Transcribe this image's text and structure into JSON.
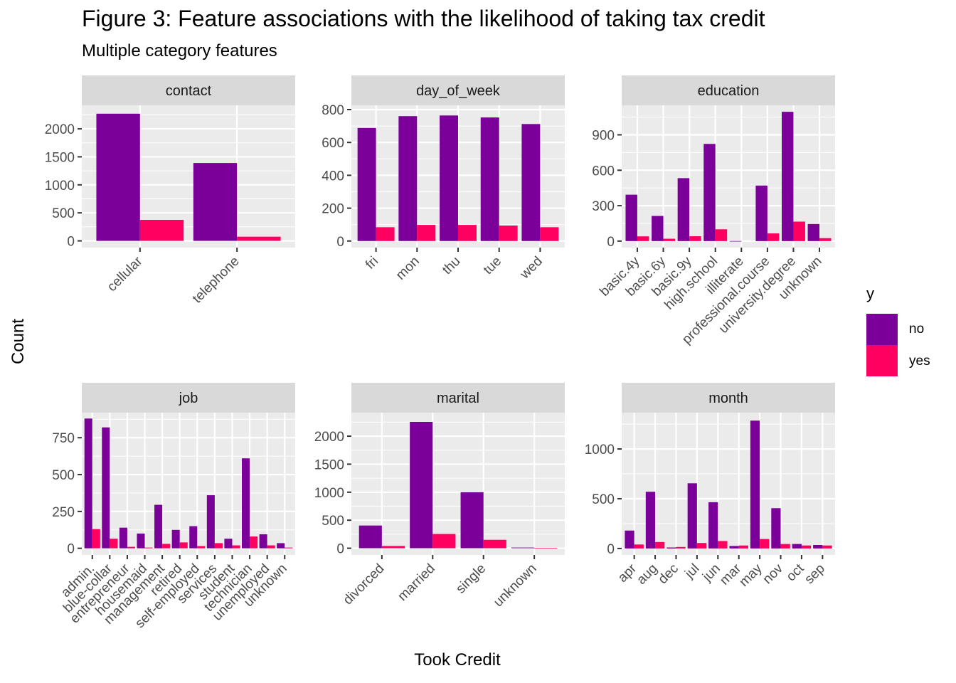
{
  "title": "Figure 3: Feature associations with the likelihood of taking tax credit",
  "subtitle": "Multiple category features",
  "xlabel": "Took Credit",
  "ylabel": "Count",
  "legend": {
    "title": "y",
    "entries": [
      {
        "label": "no",
        "color": "#7B0099"
      },
      {
        "label": "yes",
        "color": "#FF0060"
      }
    ]
  },
  "chart_data": [
    {
      "type": "bar",
      "facet": "contact",
      "categories": [
        "cellular",
        "telephone"
      ],
      "series": [
        {
          "name": "no",
          "values": [
            2270,
            1390
          ]
        },
        {
          "name": "yes",
          "values": [
            375,
            75
          ]
        }
      ],
      "yticks": [
        0,
        500,
        1000,
        1500,
        2000
      ],
      "ylim": [
        -120,
        2420
      ]
    },
    {
      "type": "bar",
      "facet": "day_of_week",
      "categories": [
        "fri",
        "mon",
        "thu",
        "tue",
        "wed"
      ],
      "series": [
        {
          "name": "no",
          "values": [
            688,
            760,
            764,
            752,
            712
          ]
        },
        {
          "name": "yes",
          "values": [
            84,
            98,
            98,
            94,
            84
          ]
        }
      ],
      "yticks": [
        0,
        200,
        400,
        600,
        800
      ],
      "ylim": [
        -40,
        826
      ]
    },
    {
      "type": "bar",
      "facet": "education",
      "categories": [
        "basic.4y",
        "basic.6y",
        "basic.9y",
        "high.school",
        "illiterate",
        "professional.course",
        "university.degree",
        "unknown"
      ],
      "series": [
        {
          "name": "no",
          "values": [
            393,
            213,
            533,
            823,
            1,
            470,
            1095,
            145
          ]
        },
        {
          "name": "yes",
          "values": [
            40,
            20,
            41,
            100,
            0,
            65,
            165,
            25
          ]
        }
      ],
      "yticks": [
        0,
        300,
        600,
        900
      ],
      "ylim": [
        -55,
        1150
      ]
    },
    {
      "type": "bar",
      "facet": "job",
      "categories": [
        "admin.",
        "blue-collar",
        "entrepreneur",
        "housemaid",
        "management",
        "retired",
        "self-employed",
        "services",
        "student",
        "technician",
        "unemployed",
        "unknown"
      ],
      "series": [
        {
          "name": "no",
          "values": [
            880,
            820,
            140,
            100,
            295,
            125,
            150,
            360,
            65,
            610,
            95,
            35
          ]
        },
        {
          "name": "yes",
          "values": [
            130,
            65,
            10,
            5,
            30,
            40,
            15,
            35,
            20,
            80,
            20,
            5
          ]
        }
      ],
      "yticks": [
        0,
        250,
        500,
        750
      ],
      "ylim": [
        -45,
        920
      ]
    },
    {
      "type": "bar",
      "facet": "marital",
      "categories": [
        "divorced",
        "married",
        "single",
        "unknown"
      ],
      "series": [
        {
          "name": "no",
          "values": [
            405,
            2255,
            1000,
            12
          ]
        },
        {
          "name": "yes",
          "values": [
            40,
            255,
            150,
            3
          ]
        }
      ],
      "yticks": [
        0,
        500,
        1000,
        1500,
        2000
      ],
      "ylim": [
        -120,
        2420
      ]
    },
    {
      "type": "bar",
      "facet": "month",
      "categories": [
        "apr",
        "aug",
        "dec",
        "jul",
        "jun",
        "mar",
        "may",
        "nov",
        "oct",
        "sep"
      ],
      "series": [
        {
          "name": "no",
          "values": [
            180,
            570,
            10,
            655,
            465,
            25,
            1285,
            405,
            45,
            35
          ]
        },
        {
          "name": "yes",
          "values": [
            40,
            65,
            15,
            55,
            75,
            30,
            95,
            45,
            30,
            30
          ]
        }
      ],
      "yticks": [
        0,
        500,
        1000
      ],
      "ylim": [
        -65,
        1365
      ]
    }
  ]
}
